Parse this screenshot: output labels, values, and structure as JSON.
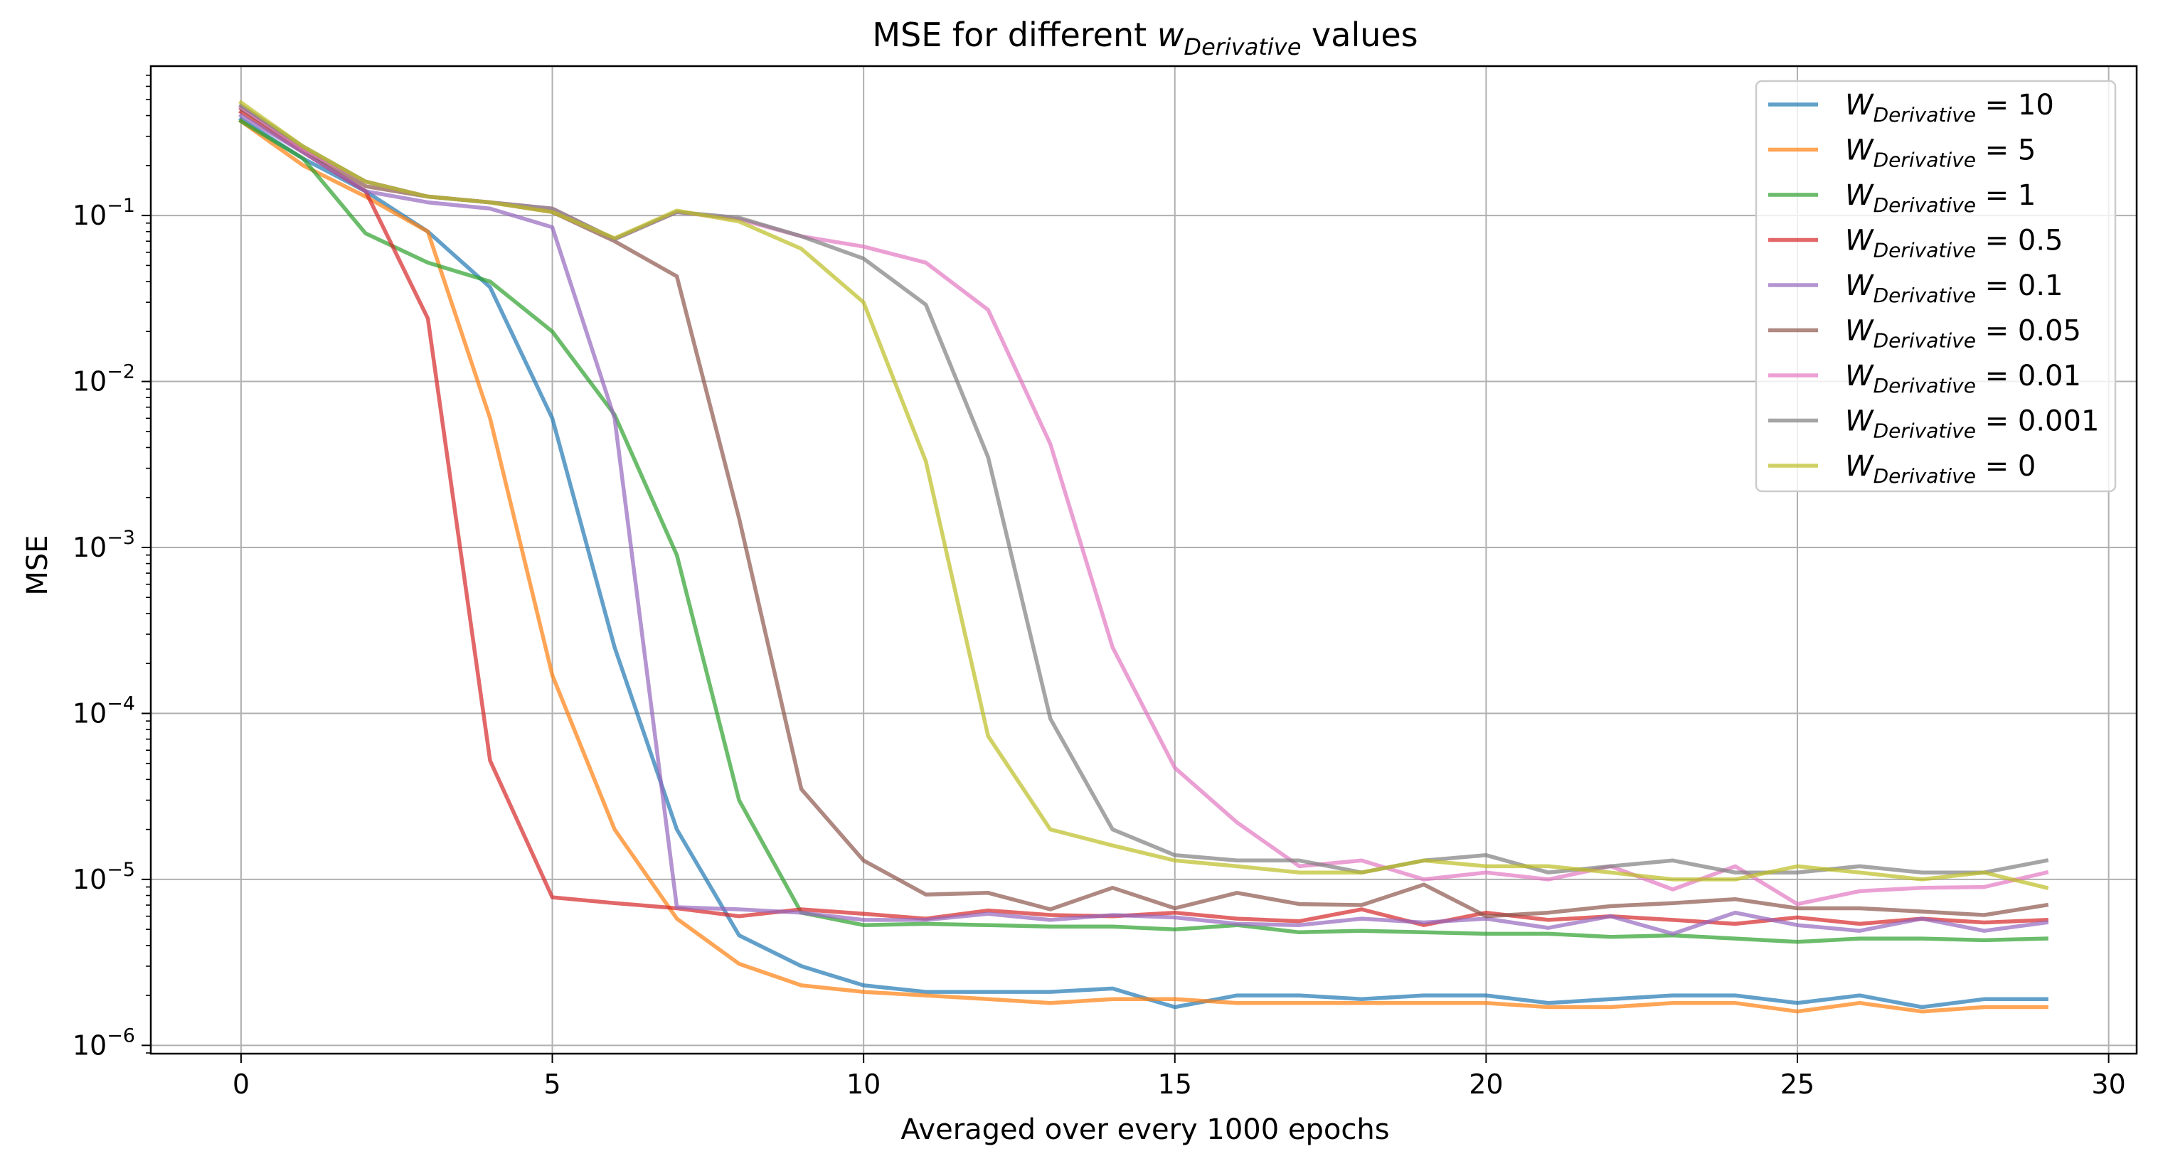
{
  "chart_data": {
    "type": "line",
    "title": {
      "prefix": "MSE for different ",
      "symbol": "w",
      "subscript": "Derivative",
      "suffix": " values"
    },
    "xlabel": "Averaged over every 1000 epochs",
    "ylabel": "MSE",
    "xlim": [
      -1.45,
      30.45
    ],
    "ylim_log10": [
      -6.05,
      -0.1
    ],
    "y_scale": "log",
    "grid": true,
    "legend_position": "top-right",
    "x_ticks": [
      0,
      5,
      10,
      15,
      20,
      25,
      30
    ],
    "x_tick_labels": [
      "0",
      "5",
      "10",
      "15",
      "20",
      "25",
      "30"
    ],
    "y_ticks_exp": [
      -6,
      -5,
      -4,
      -3,
      -2,
      -1
    ],
    "y_tick_labels": [
      {
        "base": "10",
        "exp": "−6"
      },
      {
        "base": "10",
        "exp": "−5"
      },
      {
        "base": "10",
        "exp": "−4"
      },
      {
        "base": "10",
        "exp": "−3"
      },
      {
        "base": "10",
        "exp": "−2"
      },
      {
        "base": "10",
        "exp": "−1"
      }
    ],
    "x": [
      0,
      1,
      2,
      3,
      4,
      5,
      6,
      7,
      8,
      9,
      10,
      11,
      12,
      13,
      14,
      15,
      16,
      17,
      18,
      19,
      20,
      21,
      22,
      23,
      24,
      25,
      26,
      27,
      28,
      29
    ],
    "series": [
      {
        "name": "W",
        "sub": "Derivative",
        "value": " = 10",
        "color": "#1f77b4",
        "values": [
          0.38,
          0.22,
          0.14,
          0.08,
          0.037,
          0.006,
          0.00025,
          2e-05,
          4.6e-06,
          3e-06,
          2.3e-06,
          2.1e-06,
          2.1e-06,
          2.1e-06,
          2.2e-06,
          1.7e-06,
          2e-06,
          2e-06,
          1.9e-06,
          2e-06,
          2e-06,
          1.8e-06,
          1.9e-06,
          2e-06,
          2e-06,
          1.8e-06,
          2e-06,
          1.7e-06,
          1.9e-06,
          1.9e-06
        ]
      },
      {
        "name": "W",
        "sub": "Derivative",
        "value": " = 5",
        "color": "#ff7f0e",
        "values": [
          0.37,
          0.2,
          0.13,
          0.08,
          0.006,
          0.00017,
          2e-05,
          5.8e-06,
          3.1e-06,
          2.3e-06,
          2.1e-06,
          2e-06,
          1.9e-06,
          1.8e-06,
          1.9e-06,
          1.9e-06,
          1.8e-06,
          1.8e-06,
          1.8e-06,
          1.8e-06,
          1.8e-06,
          1.7e-06,
          1.7e-06,
          1.8e-06,
          1.8e-06,
          1.6e-06,
          1.8e-06,
          1.6e-06,
          1.7e-06,
          1.7e-06
        ]
      },
      {
        "name": "W",
        "sub": "Derivative",
        "value": " = 1",
        "color": "#2ca02c",
        "values": [
          0.37,
          0.22,
          0.078,
          0.052,
          0.04,
          0.02,
          0.0063,
          0.0009,
          3e-05,
          6.3e-06,
          5.3e-06,
          5.4e-06,
          5.3e-06,
          5.2e-06,
          5.2e-06,
          5e-06,
          5.3e-06,
          4.8e-06,
          4.9e-06,
          4.8e-06,
          4.7e-06,
          4.7e-06,
          4.5e-06,
          4.6e-06,
          4.4e-06,
          4.2e-06,
          4.4e-06,
          4.4e-06,
          4.3e-06,
          4.4e-06
        ]
      },
      {
        "name": "W",
        "sub": "Derivative",
        "value": " = 0.5",
        "color": "#d62728",
        "values": [
          0.42,
          0.24,
          0.14,
          0.024,
          5.2e-05,
          7.8e-06,
          7.2e-06,
          6.7e-06,
          6e-06,
          6.6e-06,
          6.2e-06,
          5.8e-06,
          6.5e-06,
          6.1e-06,
          6e-06,
          6.3e-06,
          5.8e-06,
          5.6e-06,
          6.6e-06,
          5.3e-06,
          6.3e-06,
          5.7e-06,
          6e-06,
          5.7e-06,
          5.4e-06,
          5.9e-06,
          5.4e-06,
          5.8e-06,
          5.5e-06,
          5.7e-06
        ]
      },
      {
        "name": "W",
        "sub": "Derivative",
        "value": " = 0.1",
        "color": "#9467bd",
        "values": [
          0.4,
          0.24,
          0.14,
          0.12,
          0.11,
          0.085,
          0.006,
          6.8e-06,
          6.6e-06,
          6.3e-06,
          5.7e-06,
          5.7e-06,
          6.2e-06,
          5.7e-06,
          6.1e-06,
          5.9e-06,
          5.4e-06,
          5.3e-06,
          5.8e-06,
          5.5e-06,
          5.8e-06,
          5.1e-06,
          6e-06,
          4.7e-06,
          6.3e-06,
          5.3e-06,
          4.9e-06,
          5.8e-06,
          4.9e-06,
          5.5e-06
        ]
      },
      {
        "name": "W",
        "sub": "Derivative",
        "value": " = 0.05",
        "color": "#8c564b",
        "values": [
          0.44,
          0.25,
          0.15,
          0.13,
          0.12,
          0.105,
          0.07,
          0.043,
          0.0015,
          3.5e-05,
          1.3e-05,
          8.1e-06,
          8.3e-06,
          6.6e-06,
          8.9e-06,
          6.7e-06,
          8.3e-06,
          7.1e-06,
          7e-06,
          9.3e-06,
          6e-06,
          6.3e-06,
          6.9e-06,
          7.2e-06,
          7.6e-06,
          6.7e-06,
          6.7e-06,
          6.4e-06,
          6.1e-06,
          7e-06
        ]
      },
      {
        "name": "W",
        "sub": "Derivative",
        "value": " = 0.01",
        "color": "#e377c2",
        "values": [
          0.45,
          0.25,
          0.16,
          0.13,
          0.12,
          0.11,
          0.072,
          0.105,
          0.095,
          0.075,
          0.065,
          0.052,
          0.027,
          0.0042,
          0.00025,
          4.7e-05,
          2.2e-05,
          1.2e-05,
          1.3e-05,
          1e-05,
          1.1e-05,
          1e-05,
          1.2e-05,
          8.7e-06,
          1.2e-05,
          7.1e-06,
          8.5e-06,
          8.9e-06,
          9e-06,
          1.1e-05
        ]
      },
      {
        "name": "W",
        "sub": "Derivative",
        "value": " = 0.001",
        "color": "#7f7f7f",
        "values": [
          0.46,
          0.26,
          0.16,
          0.13,
          0.12,
          0.11,
          0.072,
          0.105,
          0.097,
          0.075,
          0.055,
          0.029,
          0.0035,
          9.3e-05,
          2e-05,
          1.4e-05,
          1.3e-05,
          1.3e-05,
          1.1e-05,
          1.3e-05,
          1.4e-05,
          1.1e-05,
          1.2e-05,
          1.3e-05,
          1.1e-05,
          1.1e-05,
          1.2e-05,
          1.1e-05,
          1.1e-05,
          1.3e-05
        ]
      },
      {
        "name": "W",
        "sub": "Derivative",
        "value": " = 0",
        "color": "#bcbd22",
        "values": [
          0.48,
          0.26,
          0.16,
          0.13,
          0.12,
          0.105,
          0.073,
          0.107,
          0.092,
          0.063,
          0.03,
          0.0033,
          7.3e-05,
          2e-05,
          1.6e-05,
          1.3e-05,
          1.2e-05,
          1.1e-05,
          1.1e-05,
          1.3e-05,
          1.2e-05,
          1.2e-05,
          1.1e-05,
          1e-05,
          1e-05,
          1.2e-05,
          1.1e-05,
          1e-05,
          1.1e-05,
          8.9e-06
        ]
      }
    ]
  }
}
